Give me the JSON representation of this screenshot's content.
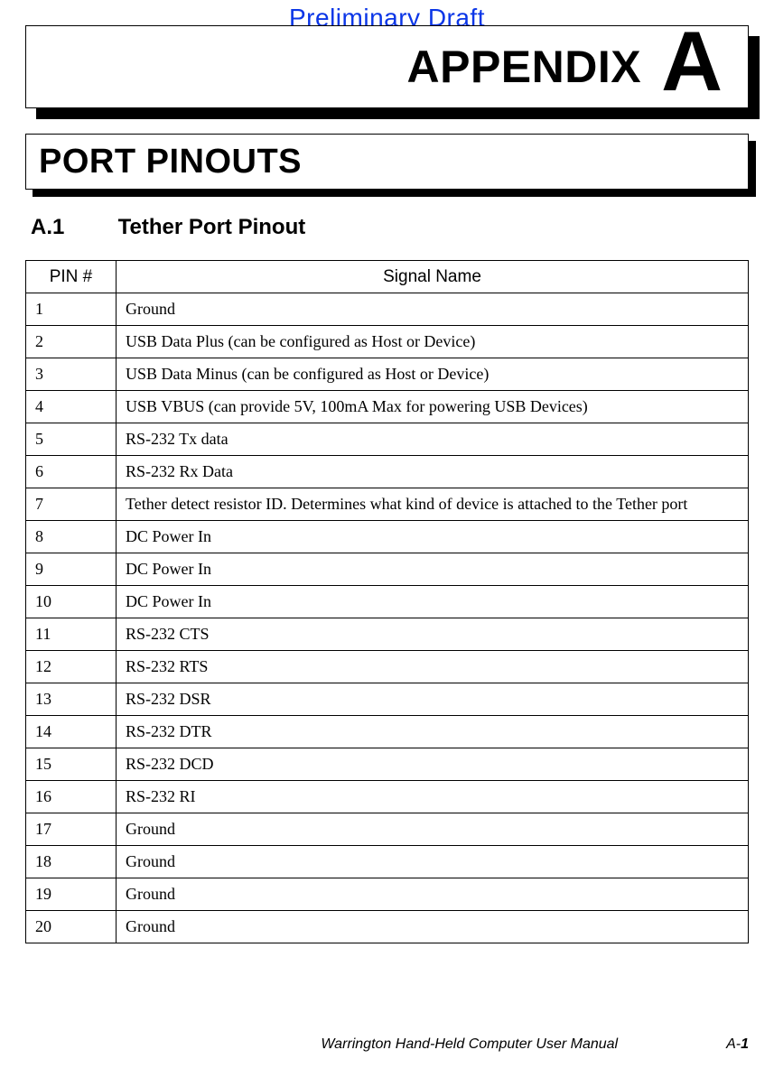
{
  "watermark": "Preliminary Draft",
  "appendix": {
    "label": "APPENDIX",
    "letter": "A"
  },
  "section_title": "PORT PINOUTS",
  "subsection": {
    "number": "A.1",
    "title": "Tether Port Pinout"
  },
  "table": {
    "columns": [
      "PIN #",
      "Signal Name"
    ],
    "column_widths": [
      "100px",
      "auto"
    ],
    "rows": [
      [
        "1",
        "Ground"
      ],
      [
        "2",
        "USB Data Plus (can be configured as Host or Device)"
      ],
      [
        "3",
        "USB Data Minus (can be configured as Host or Device)"
      ],
      [
        "4",
        "USB VBUS   (can provide 5V, 100mA Max for powering USB Devices)"
      ],
      [
        "5",
        "RS-232 Tx data"
      ],
      [
        "6",
        "RS-232 Rx Data"
      ],
      [
        "7",
        "Tether detect resistor ID. Determines what kind of device is attached to the Tether port"
      ],
      [
        "8",
        "DC Power In"
      ],
      [
        "9",
        "DC Power In"
      ],
      [
        "10",
        "DC Power In"
      ],
      [
        "11",
        "RS-232 CTS"
      ],
      [
        "12",
        "RS-232 RTS"
      ],
      [
        "13",
        "RS-232 DSR"
      ],
      [
        "14",
        "RS-232 DTR"
      ],
      [
        "15",
        "RS-232 DCD"
      ],
      [
        "16",
        "RS-232 RI"
      ],
      [
        "17",
        "Ground"
      ],
      [
        "18",
        "Ground"
      ],
      [
        "19",
        "Ground"
      ],
      [
        "20",
        "Ground"
      ]
    ]
  },
  "footer": {
    "manual": "Warrington Hand-Held Computer User Manual",
    "page_prefix": "A-",
    "page_num": "1"
  },
  "colors": {
    "watermark": "#0b36e7",
    "border": "#000000",
    "background": "#ffffff"
  }
}
